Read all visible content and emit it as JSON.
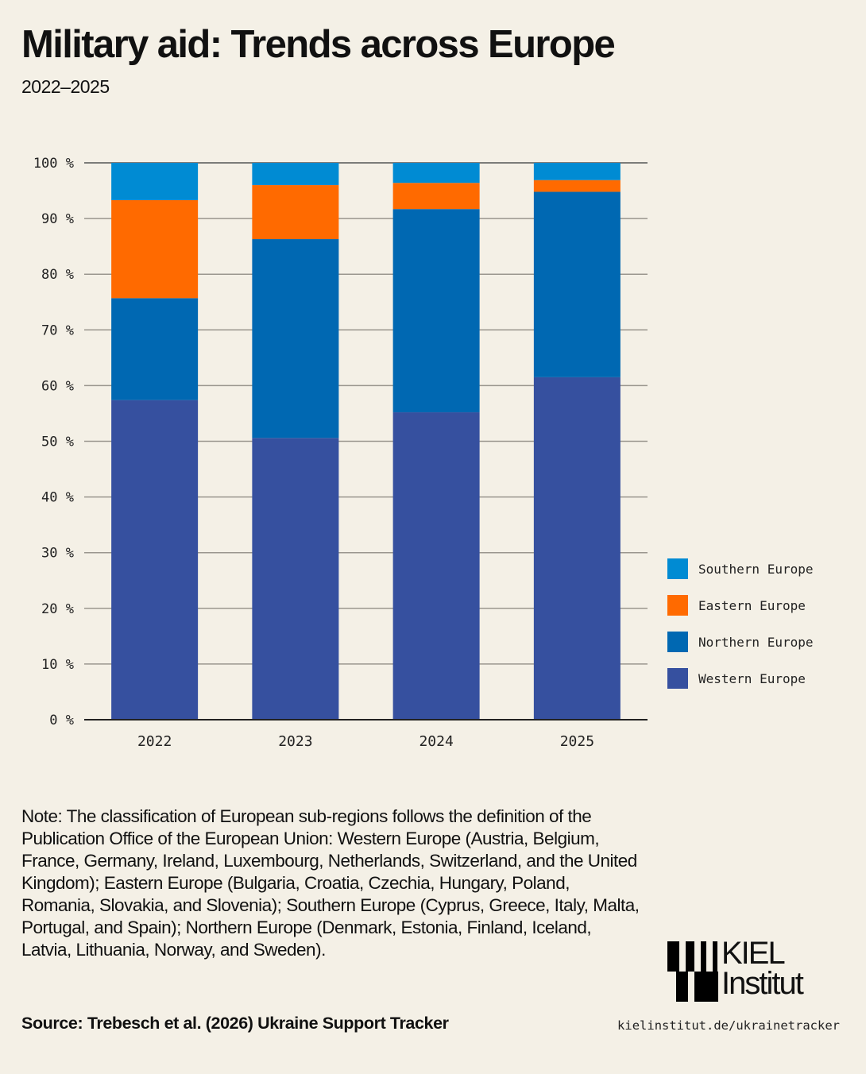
{
  "header": {
    "title": "Military aid: Trends across Europe",
    "subtitle": "2022–2025"
  },
  "chart_data": {
    "type": "bar",
    "stacked": true,
    "title": "Military aid: Trends across Europe",
    "subtitle": "2022–2025",
    "xlabel": "",
    "ylabel": "",
    "categories": [
      "2022",
      "2023",
      "2024",
      "2025"
    ],
    "ylim": [
      0,
      100
    ],
    "yticks": [
      0,
      10,
      20,
      30,
      40,
      50,
      60,
      70,
      80,
      90,
      100
    ],
    "ytick_labels": [
      "0 %",
      "10 %",
      "20 %",
      "30 %",
      "40 %",
      "50 %",
      "60 %",
      "70 %",
      "80 %",
      "90 %",
      "100 %"
    ],
    "grid": true,
    "legend_position": "right",
    "series": [
      {
        "name": "Western Europe",
        "color": "#36509f",
        "values": [
          57.4,
          50.6,
          55.2,
          61.5
        ]
      },
      {
        "name": "Northern Europe",
        "color": "#0068b2",
        "values": [
          18.3,
          35.7,
          36.5,
          33.3
        ]
      },
      {
        "name": "Eastern Europe",
        "color": "#ff6a00",
        "values": [
          17.6,
          9.7,
          4.7,
          2.1
        ]
      },
      {
        "name": "Southern Europe",
        "color": "#008bd3",
        "values": [
          6.7,
          4.0,
          3.6,
          3.1
        ]
      }
    ]
  },
  "legend": {
    "items": [
      {
        "label": "Southern Europe",
        "color": "#008bd3"
      },
      {
        "label": "Eastern Europe",
        "color": "#ff6a00"
      },
      {
        "label": "Northern Europe",
        "color": "#0068b2"
      },
      {
        "label": "Western Europe",
        "color": "#36509f"
      }
    ]
  },
  "footer": {
    "note": "Note: The classification of European sub-regions follows the definition of the Publication Office of the European Union: Western Europe (Austria, Belgium, France, Germany, Ireland, Luxembourg, Netherlands, Switzerland, and the United Kingdom); Eastern Europe (Bulgaria, Croatia, Czechia, Hungary, Poland, Romania, Slovakia, and Slovenia); Southern Europe (Cyprus, Greece, Italy, Malta, Portugal, and Spain); Northern Europe (Denmark, Estonia, Finland, Iceland, Latvia, Lithuania, Norway, and Sweden).",
    "source": "Source: Trebesch et al. (2026) Ukraine Support Tracker",
    "url": "kielinstitut.de/ukrainetracker",
    "logo_line1": "KIEL",
    "logo_line2": "Institut"
  }
}
